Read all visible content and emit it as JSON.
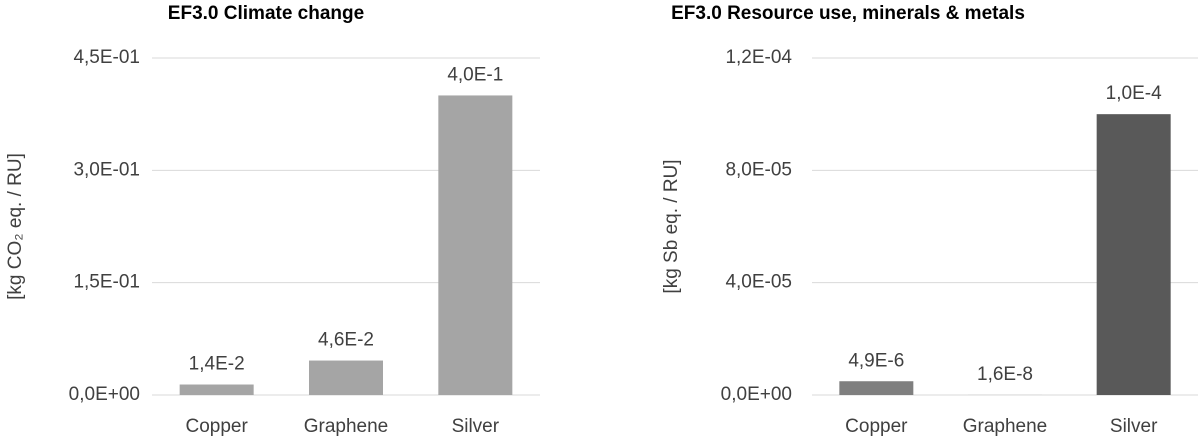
{
  "chart_data": [
    {
      "type": "bar",
      "title": "EF3.0 Climate change",
      "y_label": "[kg CO₂ eq. / RU]",
      "categories": [
        "Copper",
        "Graphene",
        "Silver"
      ],
      "values": [
        0.014,
        0.046,
        0.4
      ],
      "value_labels": [
        "1,4E-2",
        "4,6E-2",
        "4,0E-1"
      ],
      "colors": [
        "#a5a5a5",
        "#a5a5a5",
        "#a5a5a5"
      ],
      "ylim": [
        0,
        0.45
      ],
      "yticks": [
        {
          "value": 0,
          "label": "0,0E+00"
        },
        {
          "value": 0.15,
          "label": "1,5E-01"
        },
        {
          "value": 0.3,
          "label": "3,0E-01"
        },
        {
          "value": 0.45,
          "label": "4,5E-01"
        }
      ],
      "grid": true
    },
    {
      "type": "bar",
      "title": "EF3.0 Resource use, minerals & metals",
      "y_label": "[kg Sb eq. / RU]",
      "categories": [
        "Copper",
        "Graphene",
        "Silver"
      ],
      "values": [
        4.9e-06,
        1.6e-08,
        0.0001
      ],
      "value_labels": [
        "4,9E-6",
        "1,6E-8",
        "1,0E-4"
      ],
      "colors": [
        "#7f7f7f",
        "#7f7f7f",
        "#595959"
      ],
      "ylim": [
        0,
        0.00012
      ],
      "yticks": [
        {
          "value": 0,
          "label": "0,0E+00"
        },
        {
          "value": 4e-05,
          "label": "4,0E-05"
        },
        {
          "value": 8e-05,
          "label": "8,0E-05"
        },
        {
          "value": 0.00012,
          "label": "1,2E-04"
        }
      ],
      "grid": true
    }
  ]
}
